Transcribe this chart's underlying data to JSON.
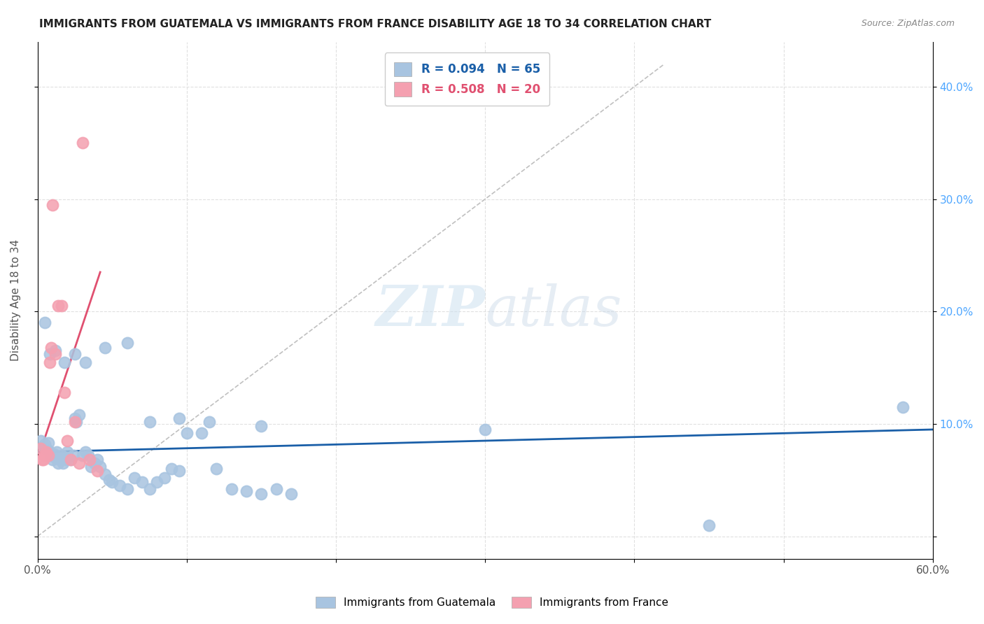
{
  "title": "IMMIGRANTS FROM GUATEMALA VS IMMIGRANTS FROM FRANCE DISABILITY AGE 18 TO 34 CORRELATION CHART",
  "source": "Source: ZipAtlas.com",
  "ylabel": "Disability Age 18 to 34",
  "ytick_labels": [
    "",
    "10.0%",
    "20.0%",
    "30.0%",
    "40.0%"
  ],
  "ytick_values": [
    0,
    0.1,
    0.2,
    0.3,
    0.4
  ],
  "xlim": [
    0,
    0.6
  ],
  "ylim": [
    -0.02,
    0.44
  ],
  "legend_r_blue": "R = 0.094",
  "legend_n_blue": "N = 65",
  "legend_r_pink": "R = 0.508",
  "legend_n_pink": "N = 20",
  "legend_label_blue": "Immigrants from Guatemala",
  "legend_label_pink": "Immigrants from France",
  "blue_color": "#a8c4e0",
  "pink_color": "#f4a0b0",
  "trendline_blue_color": "#1a5fa8",
  "trendline_pink_color": "#e05070",
  "trendline_gray_color": "#c0c0c0",
  "watermark_zip": "ZIP",
  "watermark_atlas": "atlas",
  "blue_scatter_x": [
    0.002,
    0.004,
    0.005,
    0.006,
    0.007,
    0.008,
    0.009,
    0.01,
    0.011,
    0.012,
    0.013,
    0.014,
    0.015,
    0.016,
    0.017,
    0.018,
    0.019,
    0.02,
    0.022,
    0.024,
    0.025,
    0.026,
    0.028,
    0.03,
    0.032,
    0.034,
    0.036,
    0.038,
    0.04,
    0.042,
    0.045,
    0.048,
    0.05,
    0.055,
    0.06,
    0.065,
    0.07,
    0.075,
    0.08,
    0.085,
    0.09,
    0.095,
    0.1,
    0.11,
    0.12,
    0.13,
    0.14,
    0.15,
    0.16,
    0.17,
    0.005,
    0.008,
    0.012,
    0.018,
    0.025,
    0.032,
    0.045,
    0.06,
    0.075,
    0.095,
    0.115,
    0.15,
    0.3,
    0.45,
    0.58
  ],
  "blue_scatter_y": [
    0.085,
    0.08,
    0.082,
    0.078,
    0.083,
    0.075,
    0.072,
    0.068,
    0.073,
    0.07,
    0.075,
    0.065,
    0.068,
    0.072,
    0.065,
    0.07,
    0.068,
    0.075,
    0.068,
    0.072,
    0.105,
    0.102,
    0.108,
    0.072,
    0.075,
    0.072,
    0.062,
    0.065,
    0.068,
    0.062,
    0.055,
    0.05,
    0.048,
    0.045,
    0.042,
    0.052,
    0.048,
    0.042,
    0.048,
    0.052,
    0.06,
    0.058,
    0.092,
    0.092,
    0.06,
    0.042,
    0.04,
    0.038,
    0.042,
    0.038,
    0.19,
    0.162,
    0.165,
    0.155,
    0.162,
    0.155,
    0.168,
    0.172,
    0.102,
    0.105,
    0.102,
    0.098,
    0.095,
    0.01,
    0.115
  ],
  "pink_scatter_x": [
    0.002,
    0.003,
    0.004,
    0.005,
    0.006,
    0.007,
    0.008,
    0.009,
    0.01,
    0.012,
    0.014,
    0.016,
    0.018,
    0.02,
    0.022,
    0.025,
    0.028,
    0.03,
    0.035,
    0.04
  ],
  "pink_scatter_y": [
    0.078,
    0.068,
    0.068,
    0.072,
    0.075,
    0.072,
    0.155,
    0.168,
    0.295,
    0.162,
    0.205,
    0.205,
    0.128,
    0.085,
    0.068,
    0.102,
    0.065,
    0.35,
    0.068,
    0.058
  ],
  "blue_trend_x": [
    0.0,
    0.6
  ],
  "blue_trend_y": [
    0.075,
    0.095
  ],
  "pink_trend_x": [
    0.0,
    0.042
  ],
  "pink_trend_y": [
    0.068,
    0.235
  ],
  "gray_trend_x": [
    0.0,
    0.42
  ],
  "gray_trend_y": [
    0.0,
    0.42
  ]
}
